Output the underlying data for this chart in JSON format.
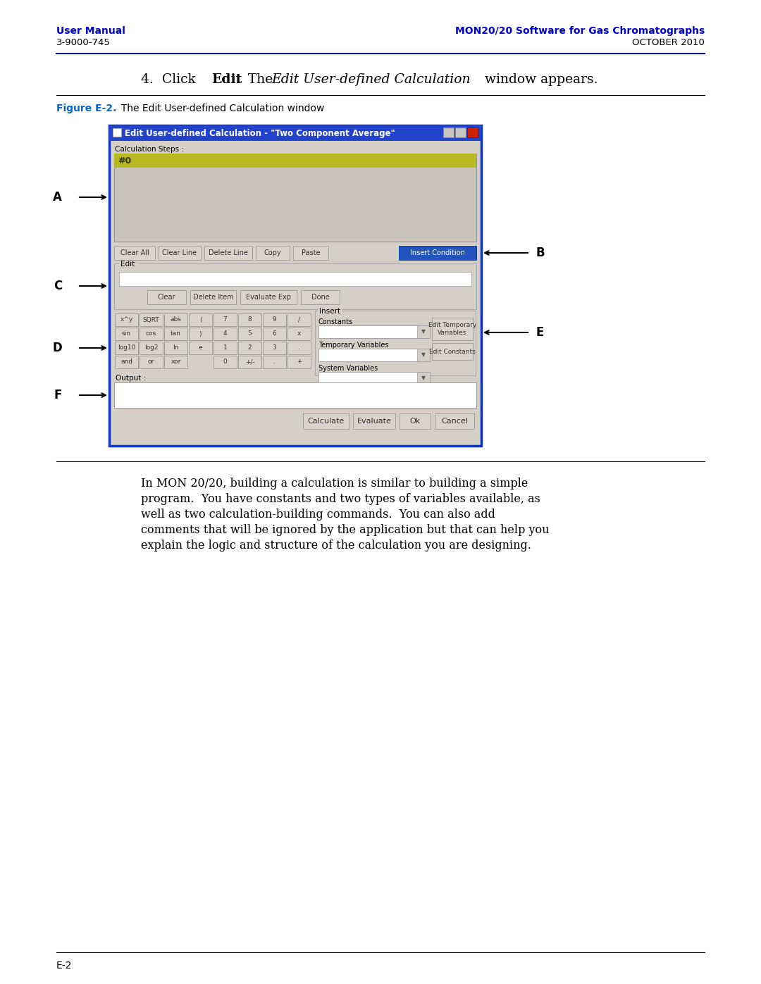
{
  "page_bg": "#ffffff",
  "header_left_bold": "User Manual",
  "header_left_normal": "3-9000-745",
  "header_right_bold": "MON20/20 Software for Gas Chromatographs",
  "header_right_normal": "OCTOBER 2010",
  "header_color": "#0000cc",
  "header_line_color": "#0000cc",
  "figure_label": "Figure E-2.",
  "figure_label_color": "#0066cc",
  "figure_caption": "  The Edit User-defined Calculation window",
  "window_title": "Edit User-defined Calculation - \"Two Component Average\"",
  "window_title_bg": "#2244cc",
  "window_title_color": "#ffffff",
  "window_bg": "#d4d0c8",
  "window_border": "#1133bb",
  "calc_steps_label": "Calculation Steps :",
  "calc_steps_text": "#0",
  "calc_steps_highlight": "#b8b820",
  "calc_steps_bg": "#c8c4bc",
  "edit_section_label": "Edit",
  "insert_section_label": "Insert",
  "constants_label": "Constants",
  "temp_vars_label": "Temporary Variables",
  "sys_vars_label": "System Variables",
  "output_label": "Output :",
  "buttons_row1": [
    "Clear All",
    "Clear Line",
    "Delete Line",
    "Copy",
    "Paste"
  ],
  "button_insert_condition": "Insert Condition",
  "buttons_edit_row": [
    "Clear",
    "Delete Item",
    "Evaluate Exp",
    "Done"
  ],
  "calc_buttons_row1": [
    "x^y",
    "SQRT",
    "abs",
    "(",
    "7",
    "8",
    "9",
    "/"
  ],
  "calc_buttons_row2": [
    "sin",
    "cos",
    "tan",
    ")",
    "4",
    "5",
    "6",
    "x"
  ],
  "calc_buttons_row3": [
    "log10",
    "log2",
    "ln",
    "e",
    "1",
    "2",
    "3",
    "."
  ],
  "calc_buttons_row4": [
    "and",
    "or",
    "xor",
    "",
    "0",
    "+/-",
    ".",
    "+"
  ],
  "bottom_buttons": [
    "Calculate",
    "Evaluate",
    "Ok",
    "Cancel"
  ],
  "button_edit_temp": "Edit Temporary\nVariables",
  "button_edit_const": "Edit Constants",
  "label_A": "A",
  "label_B": "B",
  "label_C": "C",
  "label_D": "D",
  "label_E": "E",
  "label_F": "F",
  "body_text_lines": [
    "In MON 20/20, building a calculation is similar to building a simple",
    "program.  You have constants and two types of variables available, as",
    "well as two calculation-building commands.  You can also add",
    "comments that will be ignored by the application but that can help you",
    "explain the logic and structure of the calculation you are designing."
  ],
  "footer_label": "E-2",
  "footer_line_color": "#000000"
}
